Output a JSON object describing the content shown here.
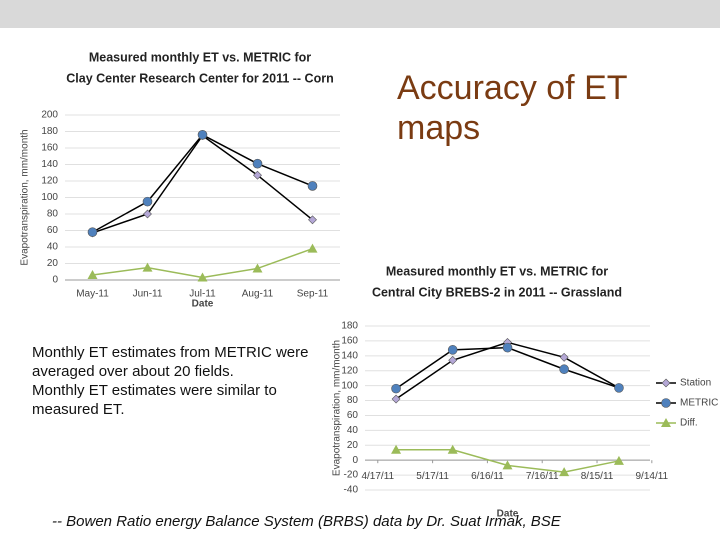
{
  "heading": "Accuracy of ET maps",
  "body": [
    "Monthly ET estimates from METRIC were averaged over about 20 fields.",
    "Monthly ET estimates were similar to measured ET."
  ],
  "footnote": "-- Bowen Ratio energy Balance System (BRBS) data by Dr. Suat Irmak, BSE",
  "chart_data": [
    {
      "type": "line",
      "title": [
        "Measured monthly ET vs. METRIC for",
        "Clay Center Research Center for 2011 -- Corn"
      ],
      "y_label": "Evapotranspiration, mm/month",
      "x_label": "Date",
      "categories": [
        "May-11",
        "Jun-11",
        "Jul-11",
        "Aug-11",
        "Sep-11"
      ],
      "series": [
        {
          "color": "#b4a7d6",
          "line_color": "#000000",
          "marker": "diamond",
          "values": [
            57,
            80,
            175,
            127,
            73
          ]
        },
        {
          "color": "#4f81bd",
          "line_color": "#000000",
          "marker": "circle",
          "values": [
            58,
            95,
            176,
            141,
            114
          ]
        },
        {
          "color": "#9bbb59",
          "line_color": "#9bbb59",
          "marker": "triangle",
          "values": [
            6,
            15,
            3,
            14,
            38
          ]
        }
      ],
      "ylim": [
        0,
        200
      ],
      "yticks": [
        0,
        20,
        40,
        60,
        80,
        100,
        120,
        140,
        160,
        180,
        200
      ],
      "grid": true
    },
    {
      "type": "line",
      "title": [
        "Measured monthly ET vs. METRIC for",
        "Central City BREBS-2 in 2011 -- Grassland"
      ],
      "y_label": "Evapotranspiration, mm/month",
      "x_label": "Date",
      "x": [
        117,
        148,
        178,
        209,
        239
      ],
      "xlim": [
        100,
        256
      ],
      "xticks": [
        {
          "value": 107,
          "label": "4/17/11"
        },
        {
          "value": 137,
          "label": "5/17/11"
        },
        {
          "value": 167,
          "label": "6/16/11"
        },
        {
          "value": 197,
          "label": "7/16/11"
        },
        {
          "value": 227,
          "label": "8/15/11"
        },
        {
          "value": 257,
          "label": "9/14/11"
        }
      ],
      "series": [
        {
          "name": "Station",
          "color": "#b4a7d6",
          "line_color": "#000000",
          "marker": "diamond",
          "values": [
            82,
            134,
            158,
            138,
            97
          ]
        },
        {
          "name": "METRIC",
          "color": "#4f81bd",
          "line_color": "#000000",
          "marker": "circle",
          "values": [
            96,
            148,
            151,
            122,
            97
          ]
        },
        {
          "name": "Diff.",
          "color": "#9bbb59",
          "line_color": "#9bbb59",
          "marker": "triangle",
          "values": [
            14,
            14,
            -7,
            -16,
            -1
          ]
        }
      ],
      "ylim": [
        -40,
        180
      ],
      "yticks": [
        -40,
        -20,
        0,
        20,
        40,
        60,
        80,
        100,
        120,
        140,
        160,
        180
      ],
      "grid": true,
      "legend": "right"
    }
  ]
}
